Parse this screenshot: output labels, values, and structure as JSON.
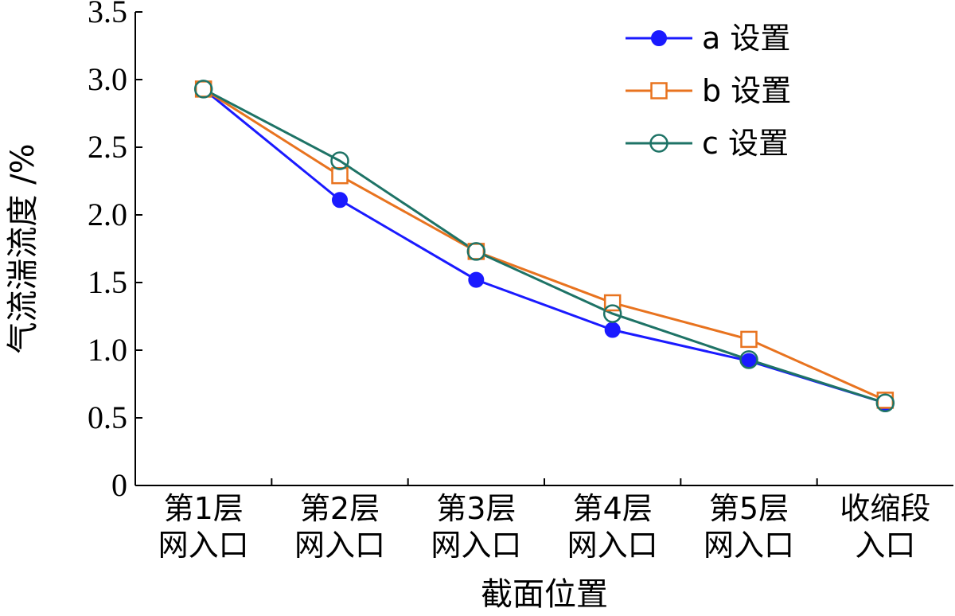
{
  "chart_data": {
    "type": "line",
    "title": "",
    "xlabel": "截面位置",
    "ylabel": "气流湍流度 /%",
    "categories": [
      [
        "第1层",
        "网入口"
      ],
      [
        "第2层",
        "网入口"
      ],
      [
        "第3层",
        "网入口"
      ],
      [
        "第4层",
        "网入口"
      ],
      [
        "第5层",
        "网入口"
      ],
      [
        "收缩段",
        "入口"
      ]
    ],
    "ylim": [
      0,
      3.5
    ],
    "yticks": [
      {
        "value": 0,
        "label": "0"
      },
      {
        "value": 0.5,
        "label": "0.5"
      },
      {
        "value": 1.0,
        "label": "1.0"
      },
      {
        "value": 1.5,
        "label": "1.5"
      },
      {
        "value": 2.0,
        "label": "2.0"
      },
      {
        "value": 2.5,
        "label": "2.5"
      },
      {
        "value": 3.0,
        "label": "3.0"
      },
      {
        "value": 3.5,
        "label": "3.5"
      }
    ],
    "grid": false,
    "legend_position": "top-right",
    "series": [
      {
        "name": "a 设置",
        "color": "#1a1aff",
        "marker": "filled-circle",
        "values": [
          2.93,
          2.11,
          1.52,
          1.15,
          0.92,
          0.61
        ]
      },
      {
        "name": "b 设置",
        "color": "#e8731f",
        "marker": "open-square",
        "values": [
          2.93,
          2.29,
          1.73,
          1.35,
          1.08,
          0.63
        ]
      },
      {
        "name": "c 设置",
        "color": "#1e7366",
        "marker": "open-circle",
        "values": [
          2.93,
          2.4,
          1.73,
          1.27,
          0.93,
          0.61
        ]
      }
    ]
  }
}
